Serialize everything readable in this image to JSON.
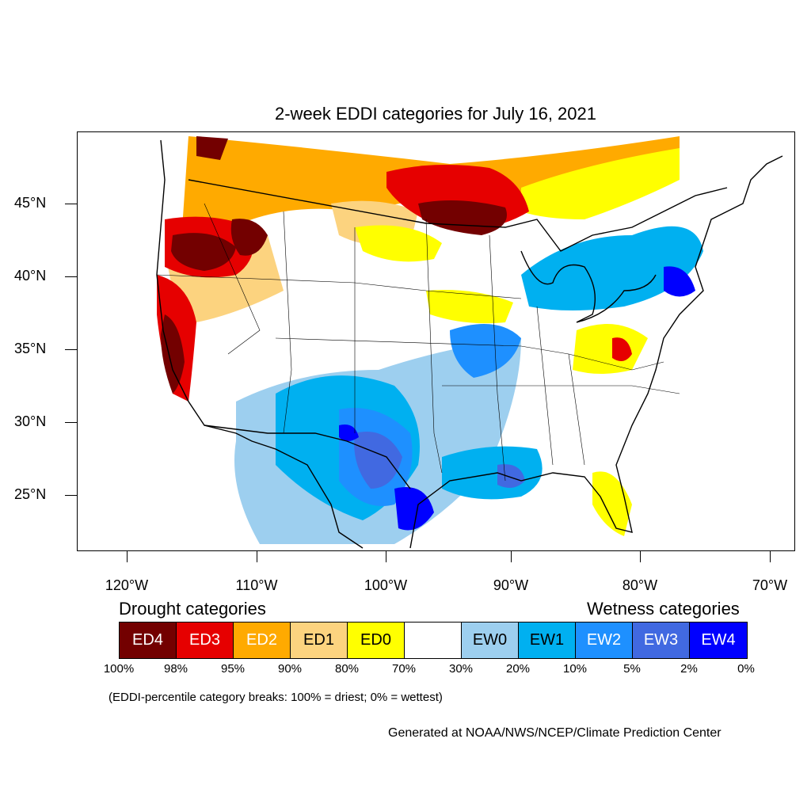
{
  "title": "2-week EDDI categories for July 16, 2021",
  "lat_labels": [
    "45°N",
    "40°N",
    "35°N",
    "30°N",
    "25°N"
  ],
  "lon_labels": [
    "120°W",
    "110°W",
    "100°W",
    "90°W",
    "80°W",
    "70°W"
  ],
  "legend": {
    "drought_heading": "Drought categories",
    "wetness_heading": "Wetness categories",
    "categories": [
      {
        "label": "ED4",
        "color": "#730000",
        "text_color": "#ffffff"
      },
      {
        "label": "ED3",
        "color": "#e60000",
        "text_color": "#ffffff"
      },
      {
        "label": "ED2",
        "color": "#ffaa00",
        "text_color": "#ffffff"
      },
      {
        "label": "ED1",
        "color": "#fcd37f",
        "text_color": "#000000"
      },
      {
        "label": "ED0",
        "color": "#ffff00",
        "text_color": "#000000"
      },
      {
        "label": "",
        "color": "#ffffff",
        "text_color": "#000000"
      },
      {
        "label": "EW0",
        "color": "#9dcfef",
        "text_color": "#000000"
      },
      {
        "label": "EW1",
        "color": "#00b0f0",
        "text_color": "#000000"
      },
      {
        "label": "EW2",
        "color": "#1e90ff",
        "text_color": "#ffffff"
      },
      {
        "label": "EW3",
        "color": "#4169e1",
        "text_color": "#ffffff"
      },
      {
        "label": "EW4",
        "color": "#0000ff",
        "text_color": "#ffffff"
      }
    ],
    "percentiles": [
      "100%",
      "98%",
      "95%",
      "90%",
      "80%",
      "70%",
      "30%",
      "20%",
      "10%",
      "5%",
      "2%",
      "0%"
    ]
  },
  "note": "(EDDI-percentile category breaks: 100% = driest; 0% = wettest)",
  "credit": "Generated at NOAA/NWS/NCEP/Climate Prediction Center"
}
